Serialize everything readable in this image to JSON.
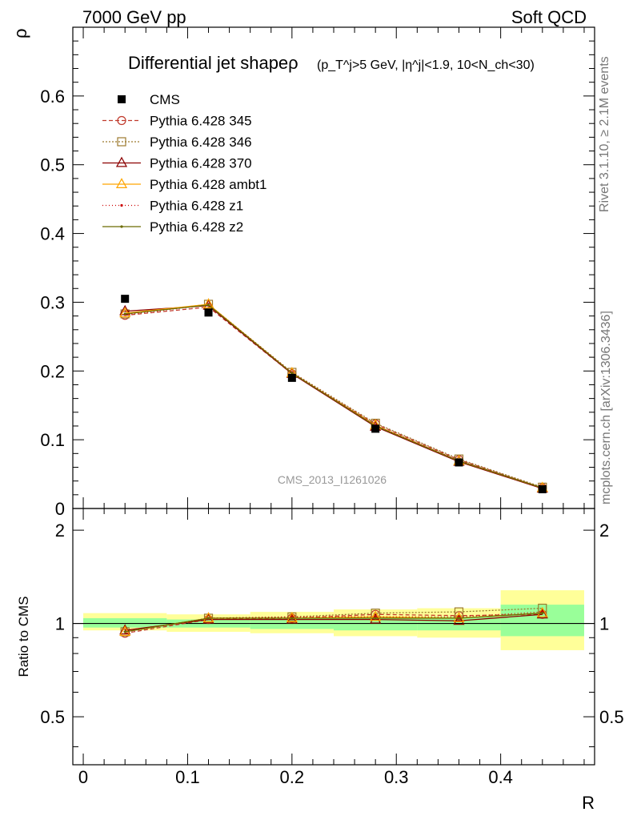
{
  "header": {
    "left": "7000 GeV pp",
    "right": "Soft QCD"
  },
  "side_labels": {
    "rivet": "Rivet 3.1.10, ≥ 2.1M events",
    "mcplots": "mcplots.cern.ch [arXiv:1306.3436]"
  },
  "watermark": "CMS_2013_I1261026",
  "chart_data": {
    "type": "line",
    "title": {
      "main": "Differential jet shapeρ",
      "cut": "(p_T^j>5 GeV, |η^j|<1.9, 10<N_ch<30)"
    },
    "xlabel": "R",
    "ylabel": "ρ",
    "ratio_ylabel": "Ratio to CMS",
    "xlim": [
      -0.01,
      0.49
    ],
    "ylim": [
      0,
      0.7
    ],
    "ratio_ylim": [
      0.35,
      2.35
    ],
    "x_ticks": [
      "0",
      "0.1",
      "0.2",
      "0.3",
      "0.4"
    ],
    "y_ticks": [
      "0",
      "0.1",
      "0.2",
      "0.3",
      "0.4",
      "0.5",
      "0.6"
    ],
    "ratio_ticks": [
      "0.5",
      "1",
      "2"
    ],
    "x": [
      0.04,
      0.12,
      0.2,
      0.28,
      0.36,
      0.44
    ],
    "data": {
      "name": "CMS",
      "values": [
        0.305,
        0.285,
        0.19,
        0.116,
        0.067,
        0.028
      ],
      "bin_edges": [
        0.0,
        0.08,
        0.16,
        0.24,
        0.32,
        0.4,
        0.48
      ],
      "band_inner": [
        [
          0.97,
          1.04
        ],
        [
          0.97,
          1.03
        ],
        [
          0.96,
          1.04
        ],
        [
          0.95,
          1.05
        ],
        [
          0.95,
          1.05
        ],
        [
          0.91,
          1.15
        ]
      ],
      "band_outer": [
        [
          0.95,
          1.08
        ],
        [
          0.94,
          1.07
        ],
        [
          0.93,
          1.09
        ],
        [
          0.91,
          1.11
        ],
        [
          0.9,
          1.12
        ],
        [
          0.82,
          1.28
        ]
      ]
    },
    "series": [
      {
        "name": "Pythia 6.428 345",
        "color": "#c0392b",
        "dash": "5,3",
        "marker": "circle",
        "values": [
          0.281,
          0.293,
          0.196,
          0.123,
          0.071,
          0.03
        ],
        "ratio": [
          0.93,
          1.03,
          1.04,
          1.07,
          1.06,
          1.07
        ]
      },
      {
        "name": "Pythia 6.428 346",
        "color": "#9c7a2e",
        "dash": "2,2",
        "marker": "square",
        "values": [
          0.283,
          0.297,
          0.198,
          0.124,
          0.072,
          0.031
        ],
        "ratio": [
          0.94,
          1.04,
          1.05,
          1.08,
          1.09,
          1.12
        ]
      },
      {
        "name": "Pythia 6.428 370",
        "color": "#8b0000",
        "dash": "",
        "marker": "triangle",
        "values": [
          0.287,
          0.295,
          0.196,
          0.119,
          0.068,
          0.029
        ],
        "ratio": [
          0.95,
          1.03,
          1.03,
          1.03,
          1.02,
          1.07
        ]
      },
      {
        "name": "Pythia 6.428 ambt1",
        "color": "#ffa500",
        "dash": "",
        "marker": "triangle",
        "values": [
          0.284,
          0.297,
          0.197,
          0.121,
          0.069,
          0.03
        ],
        "ratio": [
          0.94,
          1.04,
          1.04,
          1.05,
          1.04,
          1.08
        ]
      },
      {
        "name": "Pythia 6.428 z1",
        "color": "#cc0000",
        "dash": "1,3",
        "marker": "dot",
        "values": [
          0.282,
          0.296,
          0.198,
          0.121,
          0.07,
          0.03
        ],
        "ratio": [
          0.94,
          1.04,
          1.05,
          1.05,
          1.05,
          1.09
        ]
      },
      {
        "name": "Pythia 6.428 z2",
        "color": "#6b6b00",
        "dash": "",
        "marker": "dot",
        "values": [
          0.283,
          0.296,
          0.197,
          0.12,
          0.069,
          0.03
        ],
        "ratio": [
          0.94,
          1.04,
          1.04,
          1.04,
          1.04,
          1.08
        ]
      }
    ]
  }
}
